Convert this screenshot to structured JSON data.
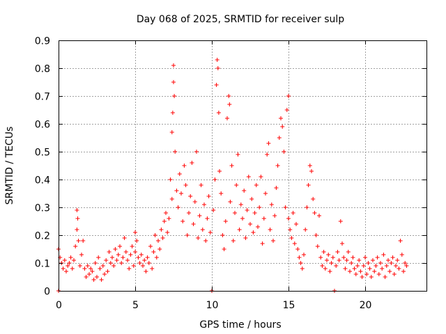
{
  "chart_data": {
    "type": "scatter",
    "title": "Day 068 of 2025, SRMTID for receiver sulp",
    "xlabel": "GPS time / hours",
    "ylabel": "SRMTID / TECUs",
    "xlim": [
      0,
      24
    ],
    "ylim": [
      0,
      0.9
    ],
    "grid": true,
    "marker": "+",
    "color": "#ff0000",
    "x_ticks": [
      0,
      5,
      10,
      15,
      20
    ],
    "x_tick_labels": [
      "0",
      "5",
      "10",
      "15",
      "20"
    ],
    "y_ticks": [
      0,
      0.1,
      0.2,
      0.3,
      0.4,
      0.5,
      0.6,
      0.7,
      0.8,
      0.9
    ],
    "y_tick_labels": [
      "0",
      "0.1",
      "0.2",
      "0.3",
      "0.4",
      "0.5",
      "0.6",
      "0.7",
      "0.8",
      "0.9"
    ],
    "series": [
      {
        "name": "SRMTID",
        "points": [
          [
            0.0,
            0.0
          ],
          [
            0.0,
            0.15
          ],
          [
            0.1,
            0.12
          ],
          [
            0.2,
            0.1
          ],
          [
            0.3,
            0.08
          ],
          [
            0.4,
            0.11
          ],
          [
            0.5,
            0.07
          ],
          [
            0.6,
            0.09
          ],
          [
            0.7,
            0.1
          ],
          [
            0.8,
            0.12
          ],
          [
            0.9,
            0.08
          ],
          [
            1.0,
            0.11
          ],
          [
            1.1,
            0.16
          ],
          [
            1.2,
            0.22
          ],
          [
            1.2,
            0.29
          ],
          [
            1.25,
            0.26
          ],
          [
            1.3,
            0.18
          ],
          [
            1.4,
            0.09
          ],
          [
            1.5,
            0.13
          ],
          [
            1.6,
            0.18
          ],
          [
            1.7,
            0.08
          ],
          [
            1.8,
            0.05
          ],
          [
            1.9,
            0.09
          ],
          [
            2.0,
            0.06
          ],
          [
            2.1,
            0.08
          ],
          [
            2.2,
            0.07
          ],
          [
            2.3,
            0.04
          ],
          [
            2.4,
            0.1
          ],
          [
            2.5,
            0.05
          ],
          [
            2.6,
            0.12
          ],
          [
            2.7,
            0.08
          ],
          [
            2.8,
            0.04
          ],
          [
            2.9,
            0.09
          ],
          [
            3.0,
            0.06
          ],
          [
            3.1,
            0.11
          ],
          [
            3.2,
            0.07
          ],
          [
            3.3,
            0.14
          ],
          [
            3.4,
            0.1
          ],
          [
            3.5,
            0.12
          ],
          [
            3.6,
            0.09
          ],
          [
            3.7,
            0.15
          ],
          [
            3.8,
            0.11
          ],
          [
            3.9,
            0.13
          ],
          [
            4.0,
            0.16
          ],
          [
            4.1,
            0.1
          ],
          [
            4.2,
            0.12
          ],
          [
            4.3,
            0.19
          ],
          [
            4.4,
            0.14
          ],
          [
            4.5,
            0.11
          ],
          [
            4.6,
            0.08
          ],
          [
            4.7,
            0.13
          ],
          [
            4.8,
            0.16
          ],
          [
            4.9,
            0.09
          ],
          [
            5.0,
            0.21
          ],
          [
            5.0,
            0.14
          ],
          [
            5.1,
            0.18
          ],
          [
            5.2,
            0.12
          ],
          [
            5.3,
            0.1
          ],
          [
            5.4,
            0.13
          ],
          [
            5.5,
            0.09
          ],
          [
            5.6,
            0.11
          ],
          [
            5.7,
            0.07
          ],
          [
            5.8,
            0.12
          ],
          [
            5.9,
            0.1
          ],
          [
            6.0,
            0.16
          ],
          [
            6.1,
            0.08
          ],
          [
            6.2,
            0.14
          ],
          [
            6.3,
            0.2
          ],
          [
            6.4,
            0.12
          ],
          [
            6.5,
            0.18
          ],
          [
            6.6,
            0.15
          ],
          [
            6.7,
            0.22
          ],
          [
            6.8,
            0.19
          ],
          [
            6.9,
            0.25
          ],
          [
            7.0,
            0.28
          ],
          [
            7.1,
            0.21
          ],
          [
            7.2,
            0.26
          ],
          [
            7.3,
            0.4
          ],
          [
            7.4,
            0.33
          ],
          [
            7.4,
            0.57
          ],
          [
            7.45,
            0.64
          ],
          [
            7.5,
            0.81
          ],
          [
            7.5,
            0.75
          ],
          [
            7.55,
            0.7
          ],
          [
            7.6,
            0.5
          ],
          [
            7.7,
            0.36
          ],
          [
            7.8,
            0.3
          ],
          [
            7.9,
            0.42
          ],
          [
            8.0,
            0.35
          ],
          [
            8.1,
            0.25
          ],
          [
            8.2,
            0.45
          ],
          [
            8.3,
            0.38
          ],
          [
            8.4,
            0.2
          ],
          [
            8.5,
            0.28
          ],
          [
            8.6,
            0.34
          ],
          [
            8.7,
            0.46
          ],
          [
            8.8,
            0.24
          ],
          [
            8.9,
            0.32
          ],
          [
            9.0,
            0.5
          ],
          [
            9.1,
            0.19
          ],
          [
            9.2,
            0.27
          ],
          [
            9.3,
            0.38
          ],
          [
            9.4,
            0.22
          ],
          [
            9.5,
            0.31
          ],
          [
            9.6,
            0.18
          ],
          [
            9.7,
            0.26
          ],
          [
            9.8,
            0.34
          ],
          [
            9.9,
            0.21
          ],
          [
            10.0,
            0.0
          ],
          [
            10.1,
            0.29
          ],
          [
            10.2,
            0.4
          ],
          [
            10.3,
            0.74
          ],
          [
            10.35,
            0.83
          ],
          [
            10.4,
            0.8
          ],
          [
            10.45,
            0.64
          ],
          [
            10.5,
            0.43
          ],
          [
            10.6,
            0.35
          ],
          [
            10.7,
            0.2
          ],
          [
            10.8,
            0.15
          ],
          [
            10.9,
            0.25
          ],
          [
            11.0,
            0.62
          ],
          [
            11.1,
            0.7
          ],
          [
            11.15,
            0.67
          ],
          [
            11.2,
            0.32
          ],
          [
            11.3,
            0.45
          ],
          [
            11.4,
            0.18
          ],
          [
            11.5,
            0.28
          ],
          [
            11.6,
            0.38
          ],
          [
            11.7,
            0.49
          ],
          [
            11.8,
            0.22
          ],
          [
            11.9,
            0.31
          ],
          [
            12.0,
            0.26
          ],
          [
            12.1,
            0.36
          ],
          [
            12.2,
            0.19
          ],
          [
            12.3,
            0.29
          ],
          [
            12.4,
            0.41
          ],
          [
            12.5,
            0.24
          ],
          [
            12.6,
            0.33
          ],
          [
            12.7,
            0.21
          ],
          [
            12.8,
            0.28
          ],
          [
            12.9,
            0.38
          ],
          [
            13.0,
            0.23
          ],
          [
            13.1,
            0.3
          ],
          [
            13.2,
            0.41
          ],
          [
            13.3,
            0.17
          ],
          [
            13.4,
            0.26
          ],
          [
            13.5,
            0.35
          ],
          [
            13.6,
            0.49
          ],
          [
            13.7,
            0.53
          ],
          [
            13.8,
            0.22
          ],
          [
            13.9,
            0.31
          ],
          [
            14.0,
            0.18
          ],
          [
            14.1,
            0.27
          ],
          [
            14.2,
            0.37
          ],
          [
            14.3,
            0.45
          ],
          [
            14.4,
            0.55
          ],
          [
            14.5,
            0.62
          ],
          [
            14.6,
            0.59
          ],
          [
            14.7,
            0.5
          ],
          [
            14.8,
            0.3
          ],
          [
            14.9,
            0.65
          ],
          [
            15.0,
            0.7
          ],
          [
            15.0,
            0.26
          ],
          [
            15.1,
            0.22
          ],
          [
            15.2,
            0.19
          ],
          [
            15.3,
            0.28
          ],
          [
            15.4,
            0.17
          ],
          [
            15.5,
            0.24
          ],
          [
            15.6,
            0.15
          ],
          [
            15.7,
            0.12
          ],
          [
            15.8,
            0.1
          ],
          [
            15.9,
            0.08
          ],
          [
            16.0,
            0.13
          ],
          [
            16.1,
            0.22
          ],
          [
            16.2,
            0.3
          ],
          [
            16.3,
            0.38
          ],
          [
            16.4,
            0.45
          ],
          [
            16.5,
            0.43
          ],
          [
            16.6,
            0.33
          ],
          [
            16.7,
            0.28
          ],
          [
            16.8,
            0.2
          ],
          [
            16.9,
            0.16
          ],
          [
            17.0,
            0.27
          ],
          [
            17.1,
            0.12
          ],
          [
            17.2,
            0.09
          ],
          [
            17.3,
            0.14
          ],
          [
            17.4,
            0.08
          ],
          [
            17.5,
            0.11
          ],
          [
            17.6,
            0.13
          ],
          [
            17.7,
            0.07
          ],
          [
            17.8,
            0.1
          ],
          [
            17.9,
            0.12
          ],
          [
            18.0,
            0.0
          ],
          [
            18.1,
            0.09
          ],
          [
            18.2,
            0.14
          ],
          [
            18.3,
            0.11
          ],
          [
            18.4,
            0.25
          ],
          [
            18.5,
            0.17
          ],
          [
            18.6,
            0.12
          ],
          [
            18.7,
            0.08
          ],
          [
            18.8,
            0.11
          ],
          [
            18.9,
            0.14
          ],
          [
            19.0,
            0.07
          ],
          [
            19.1,
            0.1
          ],
          [
            19.2,
            0.12
          ],
          [
            19.3,
            0.08
          ],
          [
            19.4,
            0.06
          ],
          [
            19.5,
            0.09
          ],
          [
            19.6,
            0.11
          ],
          [
            19.7,
            0.07
          ],
          [
            19.8,
            0.05
          ],
          [
            19.9,
            0.09
          ],
          [
            20.0,
            0.12
          ],
          [
            20.1,
            0.06
          ],
          [
            20.2,
            0.1
          ],
          [
            20.3,
            0.08
          ],
          [
            20.4,
            0.05
          ],
          [
            20.5,
            0.11
          ],
          [
            20.6,
            0.07
          ],
          [
            20.7,
            0.09
          ],
          [
            20.8,
            0.12
          ],
          [
            20.9,
            0.06
          ],
          [
            21.0,
            0.1
          ],
          [
            21.1,
            0.08
          ],
          [
            21.2,
            0.13
          ],
          [
            21.3,
            0.05
          ],
          [
            21.4,
            0.09
          ],
          [
            21.5,
            0.11
          ],
          [
            21.6,
            0.07
          ],
          [
            21.7,
            0.1
          ],
          [
            21.8,
            0.12
          ],
          [
            21.9,
            0.06
          ],
          [
            22.0,
            0.09
          ],
          [
            22.1,
            0.11
          ],
          [
            22.2,
            0.08
          ],
          [
            22.3,
            0.18
          ],
          [
            22.4,
            0.13
          ],
          [
            22.5,
            0.07
          ],
          [
            22.6,
            0.1
          ],
          [
            22.7,
            0.09
          ]
        ]
      }
    ]
  }
}
